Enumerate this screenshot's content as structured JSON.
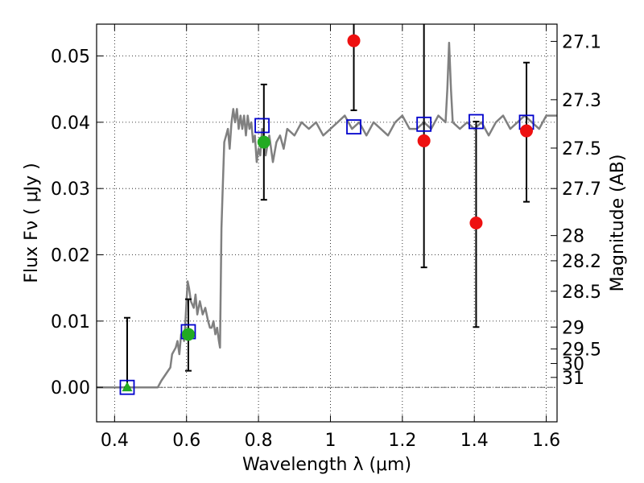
{
  "chart_data": {
    "type": "scatter",
    "title": "",
    "xlabel": "Wavelength  λ (μm)",
    "ylabel": "Flux  Fν  ( μJy )",
    "ylabel_right": "Magnitude (AB)",
    "xlim": [
      0.35,
      1.63
    ],
    "ylim": [
      -0.0052,
      0.0548
    ],
    "grid": true,
    "x_ticks": [
      0.4,
      0.6,
      0.8,
      1.0,
      1.2,
      1.4,
      1.6
    ],
    "x_tick_labels": [
      "0.4",
      "0.6",
      "0.8",
      "1",
      "1.2",
      "1.4",
      "1.6"
    ],
    "y_ticks": [
      0.0,
      0.01,
      0.02,
      0.03,
      0.04,
      0.05
    ],
    "y_tick_labels": [
      "0.00",
      "0.01",
      "0.02",
      "0.03",
      "0.04",
      "0.05"
    ],
    "right_ticks": [
      {
        "flux": 0.0522,
        "label": "27.1"
      },
      {
        "flux": 0.0434,
        "label": "27.3"
      },
      {
        "flux": 0.0361,
        "label": "27.5"
      },
      {
        "flux": 0.03,
        "label": "27.7"
      },
      {
        "flux": 0.0229,
        "label": "28"
      },
      {
        "flux": 0.0191,
        "label": "28.2"
      },
      {
        "flux": 0.0145,
        "label": "28.5"
      },
      {
        "flux": 0.0091,
        "label": "29"
      },
      {
        "flux": 0.0058,
        "label": "29.5"
      },
      {
        "flux": 0.0036,
        "label": "30"
      },
      {
        "flux": 0.0015,
        "label": "31"
      }
    ],
    "colors": {
      "model": "#808080",
      "model_points": "#0000cc",
      "detected": "#22aa22",
      "measured": "#ee1111",
      "errorbar": "#000000",
      "zero_line": "#555555"
    },
    "series": [
      {
        "kind": "model_spectrum",
        "x": [
          0.35,
          0.52,
          0.53,
          0.555,
          0.56,
          0.57,
          0.575,
          0.58,
          0.585,
          0.59,
          0.593,
          0.597,
          0.6,
          0.603,
          0.607,
          0.612,
          0.62,
          0.625,
          0.63,
          0.637,
          0.645,
          0.652,
          0.66,
          0.665,
          0.67,
          0.675,
          0.68,
          0.685,
          0.69,
          0.693,
          0.697,
          0.7,
          0.705,
          0.71,
          0.715,
          0.72,
          0.725,
          0.73,
          0.735,
          0.74,
          0.745,
          0.75,
          0.755,
          0.76,
          0.765,
          0.77,
          0.775,
          0.78,
          0.785,
          0.79,
          0.795,
          0.8,
          0.805,
          0.81,
          0.815,
          0.82,
          0.83,
          0.84,
          0.85,
          0.86,
          0.87,
          0.88,
          0.9,
          0.92,
          0.94,
          0.96,
          0.98,
          1.0,
          1.02,
          1.04,
          1.06,
          1.08,
          1.1,
          1.12,
          1.14,
          1.16,
          1.18,
          1.2,
          1.22,
          1.24,
          1.26,
          1.28,
          1.3,
          1.32,
          1.325,
          1.33,
          1.335,
          1.34,
          1.36,
          1.38,
          1.4,
          1.42,
          1.44,
          1.46,
          1.48,
          1.5,
          1.52,
          1.54,
          1.56,
          1.58,
          1.6,
          1.63
        ],
        "y": [
          0.0,
          0.0,
          0.001,
          0.003,
          0.005,
          0.006,
          0.007,
          0.005,
          0.008,
          0.008,
          0.007,
          0.01,
          0.013,
          0.016,
          0.015,
          0.013,
          0.012,
          0.014,
          0.011,
          0.013,
          0.011,
          0.012,
          0.01,
          0.009,
          0.009,
          0.01,
          0.008,
          0.009,
          0.007,
          0.006,
          0.024,
          0.029,
          0.037,
          0.038,
          0.039,
          0.036,
          0.04,
          0.042,
          0.04,
          0.042,
          0.039,
          0.041,
          0.039,
          0.041,
          0.038,
          0.041,
          0.039,
          0.04,
          0.037,
          0.038,
          0.034,
          0.036,
          0.035,
          0.039,
          0.037,
          0.035,
          0.038,
          0.034,
          0.037,
          0.038,
          0.036,
          0.039,
          0.038,
          0.04,
          0.039,
          0.04,
          0.038,
          0.039,
          0.04,
          0.041,
          0.039,
          0.04,
          0.038,
          0.04,
          0.039,
          0.038,
          0.04,
          0.041,
          0.039,
          0.039,
          0.04,
          0.039,
          0.041,
          0.04,
          0.045,
          0.052,
          0.045,
          0.04,
          0.039,
          0.04,
          0.039,
          0.04,
          0.038,
          0.04,
          0.041,
          0.039,
          0.04,
          0.041,
          0.04,
          0.039,
          0.041,
          0.041
        ]
      },
      {
        "kind": "model_points",
        "marker": "open-square",
        "x": [
          0.435,
          0.605,
          0.81,
          1.065,
          1.26,
          1.405,
          1.545
        ],
        "y": [
          0.0,
          0.0084,
          0.0395,
          0.0393,
          0.0397,
          0.0401,
          0.04
        ]
      },
      {
        "kind": "detected",
        "marker": "filled-circle",
        "x": [
          0.605,
          0.815
        ],
        "y": [
          0.008,
          0.037
        ]
      },
      {
        "kind": "upper_limit",
        "marker": "filled-triangle",
        "x": [
          0.435
        ],
        "y": [
          0.0
        ]
      },
      {
        "kind": "measured",
        "marker": "filled-circle",
        "x": [
          1.065,
          1.26,
          1.405,
          1.545
        ],
        "y": [
          0.0523,
          0.0372,
          0.0248,
          0.0387
        ]
      }
    ],
    "error_bars": [
      {
        "x": 0.435,
        "low": 0.0,
        "high": 0.0105
      },
      {
        "x": 0.605,
        "low": 0.0025,
        "high": 0.0133
      },
      {
        "x": 0.815,
        "low": 0.0283,
        "high": 0.0457
      },
      {
        "x": 1.065,
        "low": 0.0418,
        "high": 0.0548
      },
      {
        "x": 1.26,
        "low": 0.0181,
        "high": 0.0548
      },
      {
        "x": 1.405,
        "low": 0.0091,
        "high": 0.0401
      },
      {
        "x": 1.545,
        "low": 0.028,
        "high": 0.049
      }
    ]
  }
}
